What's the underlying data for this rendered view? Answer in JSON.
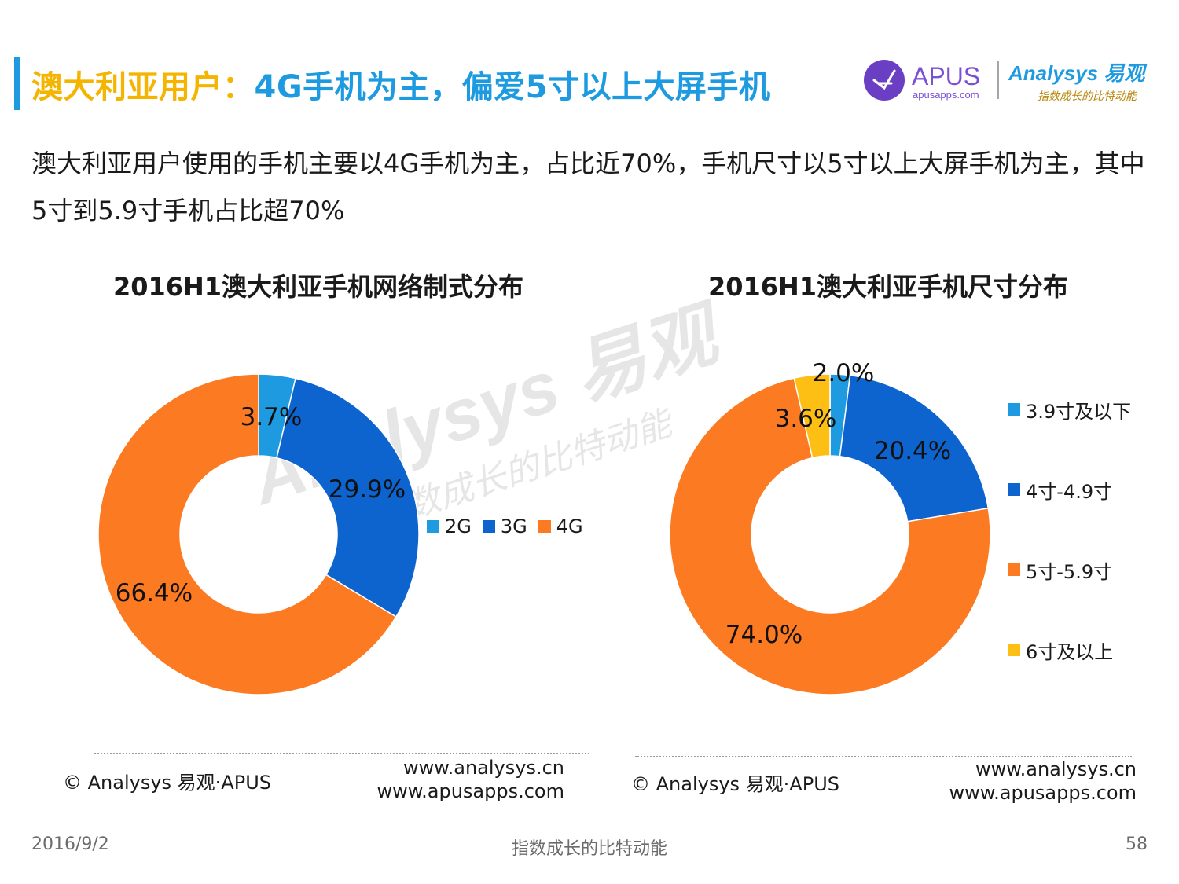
{
  "header": {
    "title_part1": "澳大利亚用户：",
    "title_part2": "4G手机为主，偏爱5寸以上大屏手机",
    "logo_apus": "APUS",
    "logo_apus_domain": "apusapps.com",
    "logo_analysys": "Analysys 易观",
    "logo_analysys_tagline": "指数成长的比特动能"
  },
  "subtitle": "澳大利亚用户使用的手机主要以4G手机为主，占比近70%，手机尺寸以5寸以上大屏手机为主，其中5寸到5.9寸手机占比超70%",
  "watermark": {
    "brand": "Analysys 易观",
    "tagline": "指数成长的比特动能"
  },
  "colors": {
    "title_yellow": "#f4b400",
    "title_blue": "#1e9be0",
    "light_blue": "#1e9be0",
    "dark_blue": "#0e64cf",
    "orange": "#fb7a22",
    "yellow": "#fdbf13"
  },
  "chart_data": [
    {
      "type": "pie",
      "donut": true,
      "title": "2016H1澳大利亚手机网络制式分布",
      "categories": [
        "2G",
        "3G",
        "4G"
      ],
      "values": [
        3.7,
        29.9,
        66.4
      ],
      "labels": [
        "3.7%",
        "29.9%",
        "66.4%"
      ],
      "colors": [
        "#1e9be0",
        "#0e64cf",
        "#fb7a22"
      ],
      "legend_position": "right"
    },
    {
      "type": "pie",
      "donut": true,
      "title": "2016H1澳大利亚手机尺寸分布",
      "categories": [
        "3.9寸及以下",
        "4寸-4.9寸",
        "5寸-5.9寸",
        "6寸及以上"
      ],
      "values": [
        2.0,
        20.4,
        74.0,
        3.6
      ],
      "labels": [
        "2.0%",
        "20.4%",
        "74.0%",
        "3.6%"
      ],
      "colors": [
        "#1e9be0",
        "#0e64cf",
        "#fb7a22",
        "#fdbf13"
      ],
      "legend_position": "right"
    }
  ],
  "footer_left": {
    "copyright": "© Analysys 易观·APUS",
    "url1": "www.analysys.cn",
    "url2": "www.apusapps.com"
  },
  "footer_right": {
    "copyright": "© Analysys 易观·APUS",
    "url1": "www.analysys.cn",
    "url2": "www.apusapps.com"
  },
  "page_footer": {
    "date": "2016/9/2",
    "tagline": "指数成长的比特动能",
    "page_number": "58"
  }
}
